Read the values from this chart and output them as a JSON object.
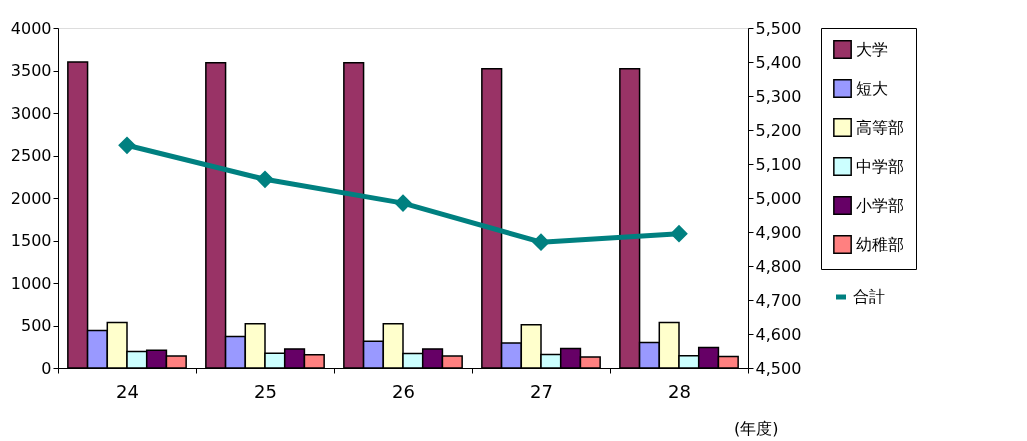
{
  "chart_data": {
    "type": "bar",
    "xlabel": "(年度)",
    "categories": [
      "24",
      "25",
      "26",
      "27",
      "28"
    ],
    "series": [
      {
        "name": "大学",
        "color": "#993366",
        "values": [
          3600,
          3590,
          3590,
          3520,
          3520
        ]
      },
      {
        "name": "短大",
        "color": "#9999ff",
        "values": [
          440,
          370,
          315,
          295,
          300
        ]
      },
      {
        "name": "高等部",
        "color": "#ffffcc",
        "values": [
          535,
          520,
          520,
          510,
          535
        ]
      },
      {
        "name": "中学部",
        "color": "#ccffff",
        "values": [
          195,
          175,
          170,
          160,
          145
        ]
      },
      {
        "name": "小学部",
        "color": "#660066",
        "values": [
          210,
          225,
          225,
          230,
          240
        ]
      },
      {
        "name": "幼稚部",
        "color": "#ff8080",
        "values": [
          140,
          155,
          140,
          130,
          135
        ]
      },
      {
        "name": "合計",
        "type": "line",
        "axis": "y2",
        "color": "#008080",
        "values": [
          5155,
          5055,
          4985,
          4870,
          4895
        ]
      }
    ],
    "ylim": [
      0,
      4000
    ],
    "yticks": [
      0,
      500,
      1000,
      1500,
      2000,
      2500,
      3000,
      3500,
      4000
    ],
    "y2lim": [
      4500,
      5500
    ],
    "y2ticks": [
      {
        "value": 4500,
        "label": "4,500"
      },
      {
        "value": 4600,
        "label": "4,600"
      },
      {
        "value": 4700,
        "label": "4,700"
      },
      {
        "value": 4800,
        "label": "4,800"
      },
      {
        "value": 4900,
        "label": "4,900"
      },
      {
        "value": 5000,
        "label": "5,000"
      },
      {
        "value": 5100,
        "label": "5,100"
      },
      {
        "value": 5200,
        "label": "5,200"
      },
      {
        "value": 5300,
        "label": "5,300"
      },
      {
        "value": 5400,
        "label": "5,400"
      },
      {
        "value": 5500,
        "label": "5,500"
      }
    ],
    "legend": "right",
    "marker": "diamond",
    "grid": false
  }
}
